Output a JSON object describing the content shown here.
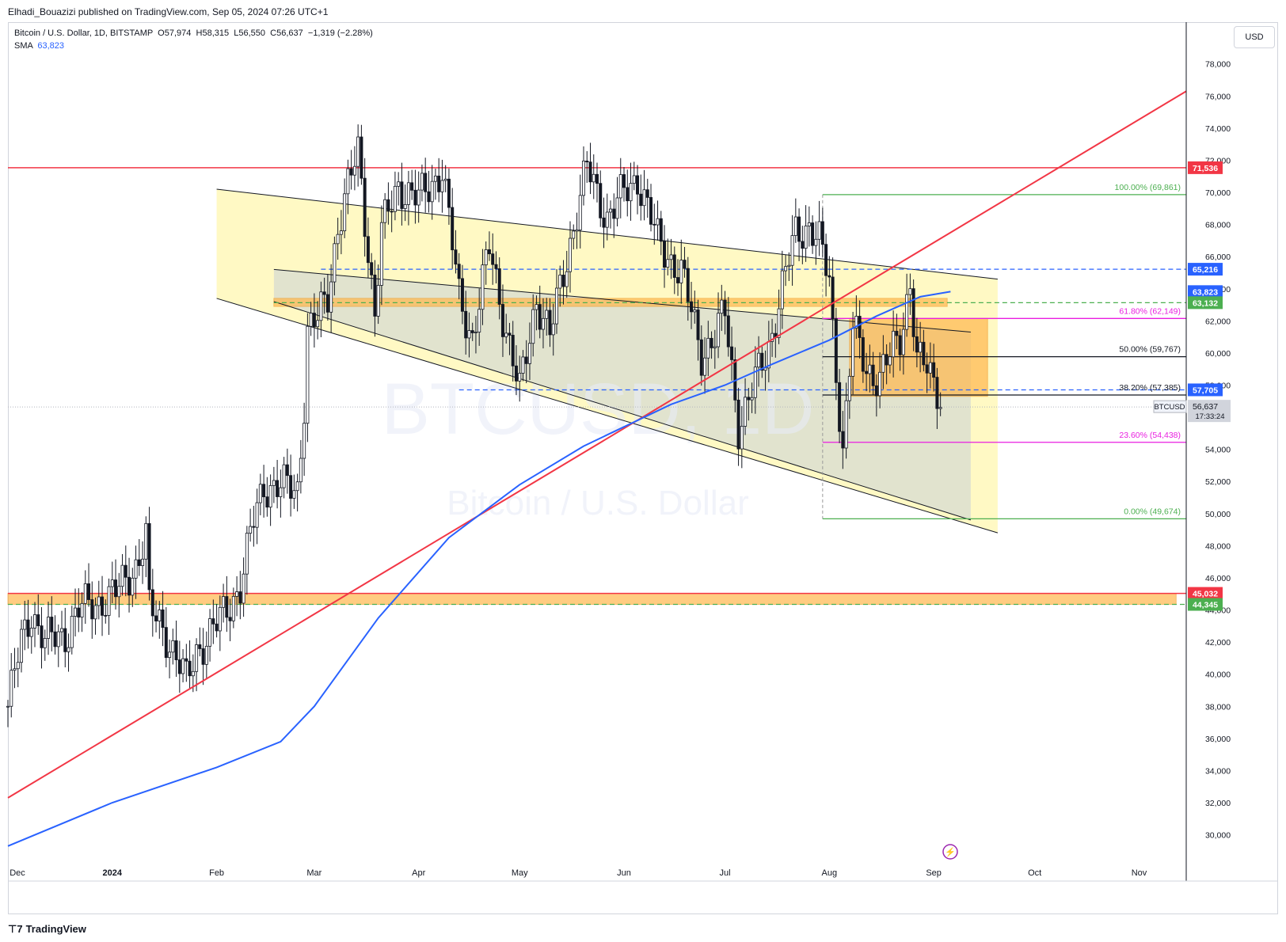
{
  "header": {
    "publisher": "Elhadi_Bouazizi published on TradingView.com, Sep 05, 2024 07:26 UTC+1"
  },
  "legend": {
    "symbol": "Bitcoin / U.S. Dollar, 1D, BITSTAMP",
    "open_label": "O",
    "open": "57,974",
    "high_label": "H",
    "high": "58,315",
    "low_label": "L",
    "low": "56,550",
    "close_label": "C",
    "close": "56,637",
    "change": "−1,319 (−2.28%)",
    "sma_label": "SMA",
    "sma_value": "63,823"
  },
  "currency": "USD",
  "watermark": {
    "ticker": "BTCUSD, 1D",
    "name": "Bitcoin / U.S. Dollar"
  },
  "footer": {
    "brand": "TradingView"
  },
  "colors": {
    "up": "#131722",
    "down": "#131722",
    "sma": "#2962ff",
    "trendline": "#f23645",
    "fib_green": "#4caf50",
    "fib_magenta": "#e91ee0",
    "dashed_blue": "#2962ff",
    "support_zone": "#ffb74d",
    "channel_outer": "#fff9c4",
    "channel_inner": "#d7dbd2"
  },
  "chart_data": {
    "type": "candlestick",
    "symbol": "BTCUSD",
    "timeframe": "1D",
    "ylim": [
      28500,
      80500
    ],
    "y_ticks": [
      30000,
      32000,
      34000,
      36000,
      38000,
      40000,
      42000,
      44000,
      46000,
      48000,
      50000,
      52000,
      54000,
      56000,
      58000,
      60000,
      62000,
      64000,
      66000,
      68000,
      70000,
      72000,
      74000,
      76000,
      78000
    ],
    "x_start": "2023-12-01",
    "x_end": "2024-11-15",
    "x_ticks": [
      {
        "date": "2023-12-01",
        "label": "Dec"
      },
      {
        "date": "2024-01-01",
        "label": "2024"
      },
      {
        "date": "2024-02-01",
        "label": "Feb"
      },
      {
        "date": "2024-03-01",
        "label": "Mar"
      },
      {
        "date": "2024-04-01",
        "label": "Apr"
      },
      {
        "date": "2024-05-01",
        "label": "May"
      },
      {
        "date": "2024-06-01",
        "label": "Jun"
      },
      {
        "date": "2024-07-01",
        "label": "Jul"
      },
      {
        "date": "2024-08-01",
        "label": "Aug"
      },
      {
        "date": "2024-09-01",
        "label": "Sep"
      },
      {
        "date": "2024-10-01",
        "label": "Oct"
      },
      {
        "date": "2024-11-01",
        "label": "Nov"
      }
    ],
    "price_path": [
      [
        "2023-12-01",
        38000
      ],
      [
        "2023-12-05",
        42000
      ],
      [
        "2023-12-08",
        44000
      ],
      [
        "2023-12-12",
        42000
      ],
      [
        "2023-12-18",
        42500
      ],
      [
        "2023-12-22",
        44000
      ],
      [
        "2024-01-02",
        45000
      ],
      [
        "2024-01-08",
        46800
      ],
      [
        "2024-01-11",
        48500
      ],
      [
        "2024-01-12",
        44000
      ],
      [
        "2024-01-16",
        43000
      ],
      [
        "2024-01-23",
        39500
      ],
      [
        "2024-01-26",
        41500
      ],
      [
        "2024-02-01",
        43000
      ],
      [
        "2024-02-08",
        45500
      ],
      [
        "2024-02-12",
        49500
      ],
      [
        "2024-02-15",
        51800
      ],
      [
        "2024-02-25",
        51500
      ],
      [
        "2024-02-27",
        57000
      ],
      [
        "2024-02-28",
        61500
      ],
      [
        "2024-03-02",
        62000
      ],
      [
        "2024-03-05",
        63500
      ],
      [
        "2024-03-08",
        68000
      ],
      [
        "2024-03-14",
        72500
      ],
      [
        "2024-03-19",
        62500
      ],
      [
        "2024-03-21",
        67500
      ],
      [
        "2024-03-26",
        70500
      ],
      [
        "2024-04-01",
        69500
      ],
      [
        "2024-04-08",
        71500
      ],
      [
        "2024-04-13",
        63500
      ],
      [
        "2024-04-17",
        61000
      ],
      [
        "2024-04-22",
        66500
      ],
      [
        "2024-05-01",
        57500
      ],
      [
        "2024-05-06",
        63500
      ],
      [
        "2024-05-10",
        61000
      ],
      [
        "2024-05-15",
        66000
      ],
      [
        "2024-05-21",
        71500
      ],
      [
        "2024-05-27",
        68500
      ],
      [
        "2024-06-05",
        71000
      ],
      [
        "2024-06-11",
        67000
      ],
      [
        "2024-06-18",
        65000
      ],
      [
        "2024-06-24",
        60000
      ],
      [
        "2024-06-28",
        61000
      ],
      [
        "2024-07-01",
        62500
      ],
      [
        "2024-07-05",
        55500
      ],
      [
        "2024-07-08",
        57000
      ],
      [
        "2024-07-14",
        60500
      ],
      [
        "2024-07-18",
        64000
      ],
      [
        "2024-07-22",
        67500
      ],
      [
        "2024-07-26",
        68000
      ],
      [
        "2024-07-29",
        66800
      ],
      [
        "2024-08-01",
        64500
      ],
      [
        "2024-08-02",
        61500
      ],
      [
        "2024-08-05",
        54000
      ],
      [
        "2024-08-08",
        61500
      ],
      [
        "2024-08-12",
        59000
      ],
      [
        "2024-08-16",
        58500
      ],
      [
        "2024-08-22",
        61000
      ],
      [
        "2024-08-25",
        64500
      ],
      [
        "2024-08-27",
        59500
      ],
      [
        "2024-08-30",
        59000
      ],
      [
        "2024-09-03",
        57500
      ],
      [
        "2024-09-04",
        56637
      ]
    ],
    "sma_path": [
      [
        "2023-12-01",
        29300
      ],
      [
        "2024-01-01",
        32000
      ],
      [
        "2024-02-01",
        34200
      ],
      [
        "2024-02-20",
        35800
      ],
      [
        "2024-03-01",
        38000
      ],
      [
        "2024-03-20",
        43500
      ],
      [
        "2024-04-10",
        48500
      ],
      [
        "2024-05-01",
        51800
      ],
      [
        "2024-05-20",
        54200
      ],
      [
        "2024-06-15",
        56800
      ],
      [
        "2024-07-01",
        58000
      ],
      [
        "2024-07-15",
        59300
      ],
      [
        "2024-08-01",
        60800
      ],
      [
        "2024-08-15",
        62300
      ],
      [
        "2024-08-28",
        63500
      ],
      [
        "2024-09-06",
        63823
      ]
    ],
    "sma_label": "SMA",
    "trendline": [
      [
        "2023-12-01",
        32300
      ],
      [
        "2024-11-15",
        76300
      ]
    ],
    "channel_outer": {
      "upper": [
        [
          "2024-02-01",
          70200
        ],
        [
          "2024-09-20",
          64600
        ]
      ],
      "lower": [
        [
          "2024-02-01",
          63400
        ],
        [
          "2024-09-20",
          48800
        ]
      ],
      "zone_end": "2024-09-20"
    },
    "channel_inner": {
      "upper": [
        [
          "2024-02-18",
          65200
        ],
        [
          "2024-09-12",
          61300
        ]
      ],
      "lower": [
        [
          "2024-02-18",
          63200
        ],
        [
          "2024-09-12",
          49600
        ]
      ]
    },
    "horizontal_lines": [
      {
        "price": 71536,
        "label": "71,536",
        "style": "solid",
        "color": "#f23645",
        "badge": "#f23645"
      },
      {
        "price": 65216,
        "label": "65,216",
        "style": "dashed",
        "color": "#2962ff",
        "badge": "#2962ff",
        "from": "2024-03-03"
      },
      {
        "price": 63823,
        "label": "63,823",
        "style": "none",
        "color": "#2962ff",
        "badge": "#2962ff"
      },
      {
        "price": 63132,
        "label": "63,132",
        "style": "dashed",
        "color": "#4caf50",
        "badge": "#4caf50",
        "from": "2024-02-18"
      },
      {
        "price": 57705,
        "label": "57,705",
        "style": "dashed",
        "color": "#2962ff",
        "badge": "#2962ff",
        "from": "2024-04-13"
      },
      {
        "price": 45032,
        "label": "45,032",
        "style": "solid",
        "color": "#f23645",
        "badge": "#f23645"
      },
      {
        "price": 44345,
        "label": "44,345",
        "style": "dashed",
        "color": "#4caf50",
        "badge": "#4caf50"
      }
    ],
    "fib": {
      "from": "2024-07-30",
      "to": "2024-11-15",
      "levels": [
        {
          "pct": "100.00%",
          "price": 69861,
          "label": "100.00% (69,861)",
          "color": "#4caf50"
        },
        {
          "pct": "61.80%",
          "price": 62149,
          "label": "61.80% (62,149)",
          "color": "#e91ee0"
        },
        {
          "pct": "50.00%",
          "price": 59767,
          "label": "50.00% (59,767)",
          "color": "#131722"
        },
        {
          "pct": "38.20%",
          "price": 57385,
          "label": "38.20% (57,385)",
          "color": "#131722"
        },
        {
          "pct": "23.60%",
          "price": 54438,
          "label": "23.60% (54,438)",
          "color": "#e91ee0"
        },
        {
          "pct": "0.00%",
          "price": 49674,
          "label": "0.00% (49,674)",
          "color": "#4caf50"
        }
      ]
    },
    "zones": [
      {
        "name": "resistance-zone",
        "from": "2024-02-18",
        "to": "2024-09-05",
        "low": 62900,
        "high": 63400,
        "color": "#ffb74d"
      },
      {
        "name": "range-zone",
        "from": "2024-08-07",
        "to": "2024-09-17",
        "low": 57300,
        "high": 62150,
        "color": "#ffb74d"
      },
      {
        "name": "support-zone",
        "from": "2023-12-01",
        "to": "2024-11-12",
        "low": 44345,
        "high": 45032,
        "color": "#ffb74d"
      }
    ],
    "current_price": {
      "label": "BTCUSD",
      "price": 56637,
      "value": "56,637",
      "countdown": "17:33:24"
    }
  }
}
